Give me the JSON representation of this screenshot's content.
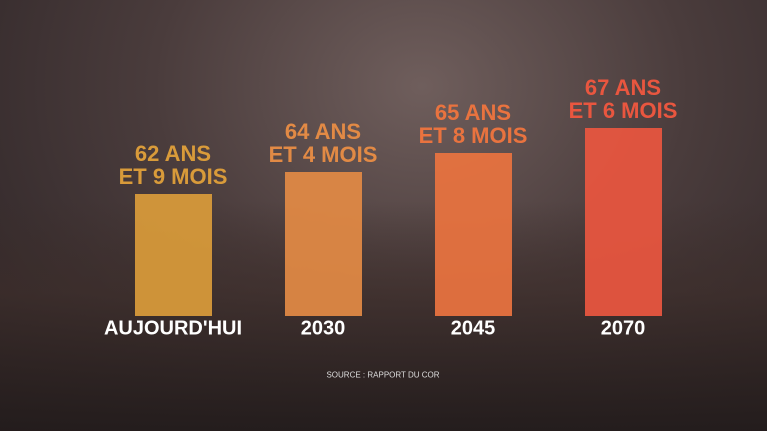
{
  "chart_data": {
    "type": "bar",
    "categories": [
      "AUJOURD'HUI",
      "2030",
      "2045",
      "2070"
    ],
    "values": [
      62.75,
      64.33,
      65.67,
      67.5
    ],
    "value_labels": [
      "62 ANS\nET 9 MOIS",
      "64 ANS\nET 4 MOIS",
      "65 ANS\nET 8 MOIS",
      "67 ANS\nET 6 MOIS"
    ],
    "colors": [
      "#d99b3a",
      "#e28a45",
      "#e9733f",
      "#e9563f"
    ],
    "ylim": [
      54,
      68
    ],
    "source": "SOURCE : RAPPORT DU COR"
  }
}
